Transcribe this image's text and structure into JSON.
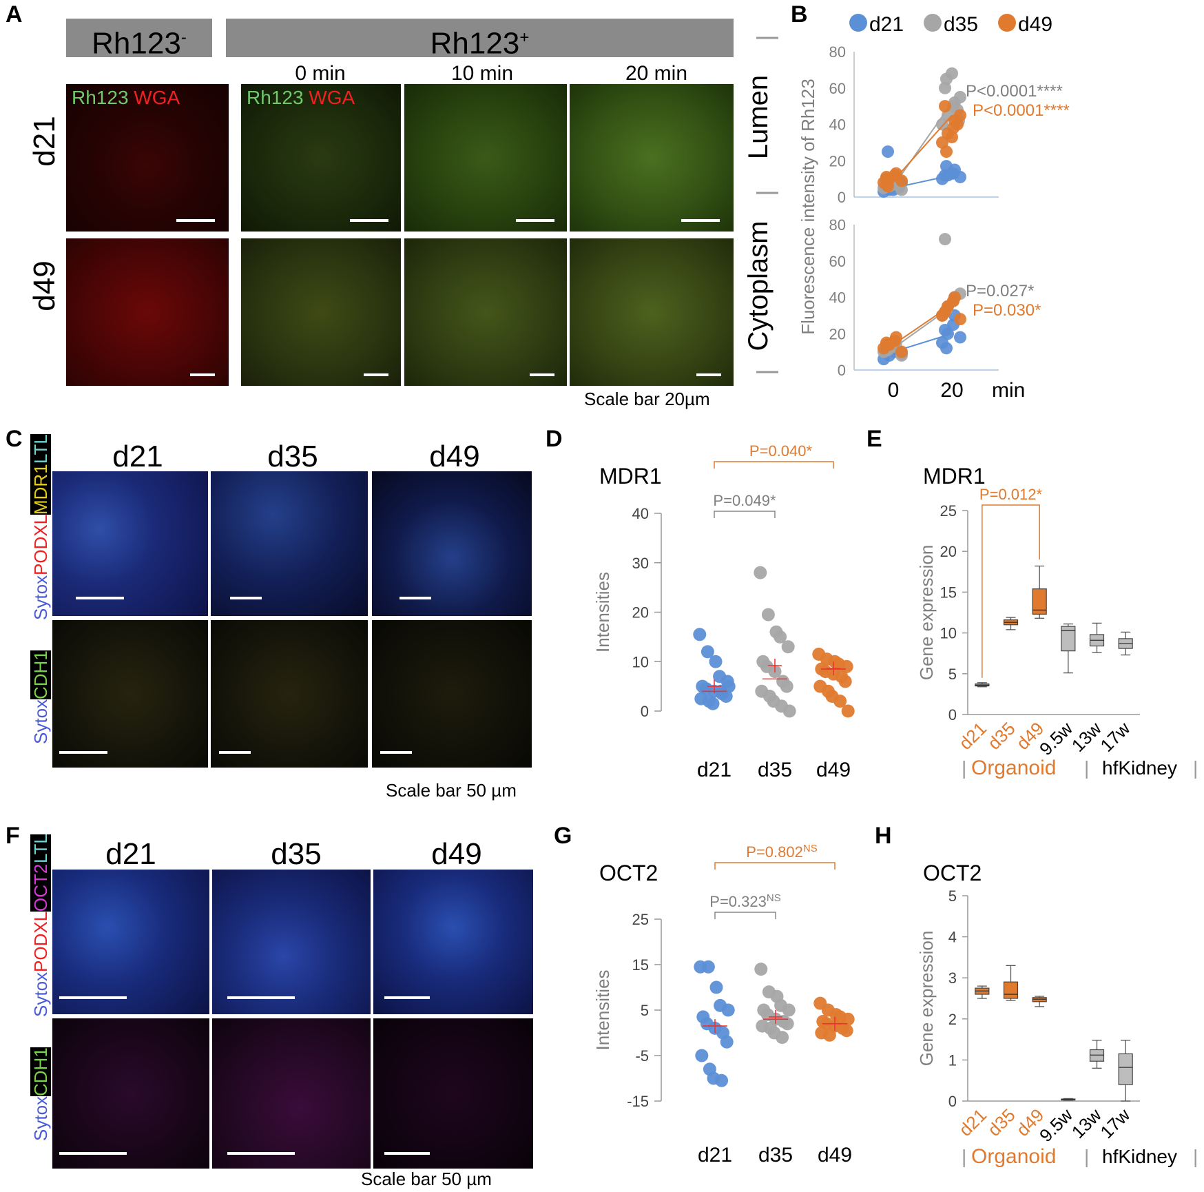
{
  "panelA": {
    "label": "A",
    "rh_neg": "Rh123",
    "rh_neg_sup": "-",
    "rh_pos": "Rh123",
    "rh_pos_sup": "+",
    "times": [
      "0 min",
      "10 min",
      "20 min"
    ],
    "rows": [
      "d21",
      "d49"
    ],
    "inlabel_green": "Rh123",
    "inlabel_red": "WGA",
    "scale_caption": "Scale bar 20µm"
  },
  "panelB": {
    "label": "B",
    "legend": [
      "d21",
      "d35",
      "d49"
    ],
    "row_labels": [
      "Lumen",
      "Cytoplasm"
    ],
    "ylabel": "Fluorescence intensity of Rh123",
    "x_ticks": [
      "0",
      "20"
    ],
    "x_unit": "min",
    "lumen_p": [
      "P<0.0001****",
      "P<0.0001****"
    ],
    "cyto_p": [
      "P=0.027*",
      "P=0.030*"
    ]
  },
  "panelC": {
    "label": "C",
    "columns": [
      "d21",
      "d35",
      "d49"
    ],
    "stain_top": [
      "Sytox",
      "PODXL",
      "MDR1",
      "LTL"
    ],
    "stain_bottom": [
      "Sytox",
      "CDH1"
    ],
    "scale_caption": "Scale bar 50 µm"
  },
  "panelD": {
    "label": "D",
    "title": "MDR1",
    "ylabel": "Intensities",
    "p1": "P=0.049*",
    "p2": "P=0.040*"
  },
  "panelE": {
    "label": "E",
    "title": "MDR1",
    "ylabel": "Gene expression",
    "p1": "P=0.012*",
    "group_organoid": "Organoid",
    "group_kidney": "hfKidney"
  },
  "panelF": {
    "label": "F",
    "columns": [
      "d21",
      "d35",
      "d49"
    ],
    "stain_top": [
      "Sytox",
      "PODXL",
      "OCT2",
      "LTL"
    ],
    "stain_bottom": [
      "Sytox",
      "CDH1"
    ],
    "scale_caption": "Scale bar 50 µm"
  },
  "panelG": {
    "label": "G",
    "title": "OCT2",
    "ylabel": "Intensities",
    "p1": "P=0.323",
    "p1_sup": "NS",
    "p2": "P=0.802",
    "p2_sup": "NS"
  },
  "panelH": {
    "label": "H",
    "title": "OCT2",
    "ylabel": "Gene expression",
    "group_organoid": "Organoid",
    "group_kidney": "hfKidney"
  },
  "colors": {
    "d21": "#5b8fd6",
    "d35": "#a6a6a6",
    "d49": "#e07a2e",
    "organoid": "#e07a2e",
    "kidney_box": "#bdbdbd",
    "grey_text": "#7f7f7f"
  },
  "chart_data": [
    {
      "id": "B-lumen",
      "type": "scatter",
      "x": [
        0,
        20
      ],
      "ylim": [
        0,
        80
      ],
      "yticks": [
        0,
        20,
        40,
        60,
        80
      ],
      "series": [
        {
          "name": "d21",
          "x0": [
            3,
            4,
            5,
            6,
            8,
            10,
            25,
            4,
            5,
            7
          ],
          "x20": [
            10,
            12,
            13,
            15,
            11,
            12,
            17,
            13
          ],
          "mean": [
            5,
            12
          ]
        },
        {
          "name": "d35",
          "x0": [
            5,
            6,
            7,
            8,
            4,
            9,
            6
          ],
          "x20": [
            40,
            45,
            50,
            52,
            55,
            60,
            65,
            68,
            48,
            42
          ],
          "mean": [
            6,
            52
          ]
        },
        {
          "name": "d49",
          "x0": [
            8,
            10,
            12,
            13,
            9,
            11,
            6
          ],
          "x20": [
            30,
            35,
            38,
            42,
            45,
            50,
            25,
            33,
            40
          ],
          "mean": [
            9,
            45
          ]
        }
      ]
    },
    {
      "id": "B-cytoplasm",
      "type": "scatter",
      "x": [
        0,
        20
      ],
      "ylim": [
        0,
        80
      ],
      "yticks": [
        0,
        20,
        40,
        60,
        80
      ],
      "series": [
        {
          "name": "d21",
          "x0": [
            6,
            8,
            10,
            12,
            9,
            11
          ],
          "x20": [
            15,
            20,
            25,
            30,
            18,
            22,
            12
          ],
          "mean": [
            10,
            20
          ]
        },
        {
          "name": "d35",
          "x0": [
            10,
            12,
            13,
            15,
            8,
            14,
            11
          ],
          "x20": [
            30,
            35,
            38,
            40,
            42,
            72,
            33
          ],
          "mean": [
            12,
            35
          ]
        },
        {
          "name": "d49",
          "x0": [
            12,
            14,
            16,
            18,
            10,
            15
          ],
          "x20": [
            30,
            35,
            38,
            40,
            28,
            32
          ],
          "mean": [
            14,
            36
          ]
        }
      ]
    },
    {
      "id": "D",
      "type": "scatter",
      "categories": [
        "d21",
        "d35",
        "d49"
      ],
      "ylim": [
        0,
        40
      ],
      "yticks": [
        0,
        10,
        20,
        30,
        40
      ],
      "series": [
        {
          "name": "d21",
          "values": [
            15.5,
            12,
            10,
            7,
            6,
            5,
            4.5,
            4,
            3.5,
            3,
            2.5,
            2,
            1.5,
            4,
            5
          ],
          "mean": 5,
          "median": 4
        },
        {
          "name": "d35",
          "values": [
            28,
            19.5,
            16,
            15,
            13,
            10,
            9,
            8,
            6,
            5,
            4,
            3,
            2,
            1,
            0
          ],
          "mean": 9.2,
          "median": 6.5
        },
        {
          "name": "d49",
          "values": [
            11.5,
            10.5,
            10,
            9.5,
            9,
            8.5,
            8,
            7.5,
            7,
            6,
            5,
            4,
            3,
            2,
            0
          ],
          "mean": 8.6,
          "median": 8.5
        }
      ]
    },
    {
      "id": "E",
      "type": "box",
      "categories": [
        "d21",
        "d35",
        "d49",
        "9.5w",
        "13w",
        "17w"
      ],
      "ylim": [
        0,
        25
      ],
      "yticks": [
        0,
        5,
        10,
        15,
        20,
        25
      ],
      "boxes": [
        {
          "min": 3.4,
          "q1": 3.5,
          "median": 3.6,
          "q3": 3.75,
          "max": 3.9
        },
        {
          "min": 10.4,
          "q1": 11.0,
          "median": 11.3,
          "q3": 11.6,
          "max": 11.9
        },
        {
          "min": 11.8,
          "q1": 12.3,
          "median": 12.8,
          "q3": 15.4,
          "max": 18.2
        },
        {
          "min": 5.1,
          "q1": 7.8,
          "median": 10.3,
          "q3": 10.8,
          "max": 11.1
        },
        {
          "min": 7.6,
          "q1": 8.4,
          "median": 9.1,
          "q3": 9.8,
          "max": 11.2
        },
        {
          "min": 7.3,
          "q1": 8.1,
          "median": 8.7,
          "q3": 9.3,
          "max": 10.1
        }
      ]
    },
    {
      "id": "G",
      "type": "scatter",
      "categories": [
        "d21",
        "d35",
        "d49"
      ],
      "ylim": [
        -15,
        25
      ],
      "yticks": [
        -15,
        -5,
        5,
        15,
        25
      ],
      "series": [
        {
          "name": "d21",
          "values": [
            14.5,
            14.5,
            10,
            6,
            5,
            3.5,
            2,
            1,
            0,
            -2,
            -5,
            -8,
            -10,
            -10.5
          ],
          "mean": 1.5,
          "median": 1.5
        },
        {
          "name": "d35",
          "values": [
            14,
            9,
            8,
            6,
            5,
            5,
            4,
            3,
            2.5,
            2,
            1.5,
            1,
            0,
            -1
          ],
          "mean": 3.5,
          "median": 3
        },
        {
          "name": "d49",
          "values": [
            6.5,
            5,
            4,
            3.5,
            3,
            2.5,
            2,
            1.5,
            1,
            0.5,
            0,
            -0.5
          ],
          "mean": 2,
          "median": 2
        }
      ]
    },
    {
      "id": "H",
      "type": "box",
      "categories": [
        "d21",
        "d35",
        "d49",
        "9.5w",
        "13w",
        "17w"
      ],
      "ylim": [
        0,
        5
      ],
      "yticks": [
        0,
        1,
        2,
        3,
        4,
        5
      ],
      "boxes": [
        {
          "min": 2.5,
          "q1": 2.6,
          "median": 2.68,
          "q3": 2.75,
          "max": 2.8
        },
        {
          "min": 2.45,
          "q1": 2.5,
          "median": 2.6,
          "q3": 2.9,
          "max": 3.3
        },
        {
          "min": 2.3,
          "q1": 2.42,
          "median": 2.48,
          "q3": 2.52,
          "max": 2.55
        },
        {
          "min": 0.02,
          "q1": 0.03,
          "median": 0.04,
          "q3": 0.05,
          "max": 0.06
        },
        {
          "min": 0.8,
          "q1": 0.97,
          "median": 1.12,
          "q3": 1.25,
          "max": 1.48
        },
        {
          "min": 0.0,
          "q1": 0.4,
          "median": 0.82,
          "q3": 1.15,
          "max": 1.48
        }
      ]
    }
  ]
}
